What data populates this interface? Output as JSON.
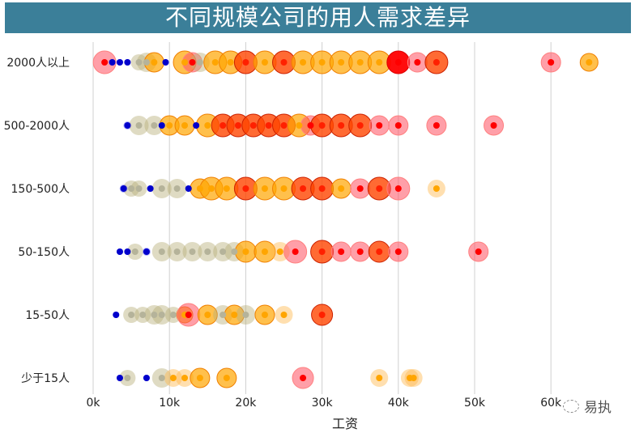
{
  "title": "不同规模公司的用人需求差异",
  "watermark": {
    "icon": "wechat-bubble-icon",
    "text": "易执"
  },
  "colors": {
    "title_bg": "#3b7f99",
    "grid": "#d0d0d0",
    "low": "#0000cc",
    "mid_low": "#c8c09a",
    "mid": "#ffa500",
    "high": "#ff4500",
    "top": "#ff0000"
  },
  "chart_data": {
    "type": "scatter",
    "title": "不同规模公司的用人需求差异",
    "xlabel": "工资",
    "ylabel": "",
    "xlim": [
      0,
      65
    ],
    "x_ticks": [
      "0k",
      "10k",
      "20k",
      "30k",
      "40k",
      "50k",
      "60k"
    ],
    "x_tick_values": [
      0,
      10,
      20,
      30,
      40,
      50,
      60
    ],
    "grid": "vertical",
    "categories": [
      "2000人以上",
      "500-2000人",
      "150-500人",
      "50-150人",
      "15-50人",
      "少于15人"
    ],
    "encoding": "x = salary (k); bubble size & color encode salary level (blue=low, beige, orange, red-orange, red=high)",
    "series": [
      {
        "name": "2000人以上",
        "points": [
          [
            1.5,
            "r",
            14
          ],
          [
            2.5,
            "b",
            4
          ],
          [
            3.5,
            "b",
            4
          ],
          [
            4.5,
            "b",
            4
          ],
          [
            6,
            "g",
            10
          ],
          [
            7,
            "g",
            12
          ],
          [
            8,
            "o",
            12
          ],
          [
            9.5,
            "b",
            4
          ],
          [
            12,
            "o",
            14
          ],
          [
            13,
            "r",
            12
          ],
          [
            14,
            "g",
            12
          ],
          [
            16,
            "o",
            14
          ],
          [
            18,
            "o",
            14
          ],
          [
            20,
            "h",
            14
          ],
          [
            22.5,
            "o",
            14
          ],
          [
            25,
            "h",
            14
          ],
          [
            27.5,
            "o",
            14
          ],
          [
            30,
            "o",
            14
          ],
          [
            32.5,
            "o",
            14
          ],
          [
            35,
            "o",
            14
          ],
          [
            37.5,
            "o",
            14
          ],
          [
            40,
            "t",
            14
          ],
          [
            42.5,
            "r",
            12
          ],
          [
            45,
            "h",
            14
          ],
          [
            60,
            "r",
            12
          ],
          [
            65,
            "o",
            11
          ]
        ]
      },
      {
        "name": "500-2000人",
        "points": [
          [
            4.5,
            "b",
            5
          ],
          [
            6,
            "g",
            12
          ],
          [
            8,
            "g",
            12
          ],
          [
            9,
            "b",
            4
          ],
          [
            10,
            "o",
            12
          ],
          [
            12,
            "o",
            12
          ],
          [
            13.5,
            "b",
            4
          ],
          [
            15,
            "o",
            14
          ],
          [
            17,
            "h",
            14
          ],
          [
            19,
            "h",
            14
          ],
          [
            21,
            "h",
            14
          ],
          [
            23,
            "h",
            14
          ],
          [
            25,
            "h",
            14
          ],
          [
            27,
            "o",
            14
          ],
          [
            28.5,
            "r",
            12
          ],
          [
            30,
            "h",
            14
          ],
          [
            32.5,
            "h",
            14
          ],
          [
            35,
            "h",
            14
          ],
          [
            37.5,
            "r",
            12
          ],
          [
            40,
            "r",
            12
          ],
          [
            45,
            "r",
            12
          ],
          [
            52.5,
            "r",
            12
          ]
        ]
      },
      {
        "name": "150-500人",
        "points": [
          [
            4,
            "b",
            5
          ],
          [
            5,
            "g",
            10
          ],
          [
            6,
            "g",
            10
          ],
          [
            7.5,
            "b",
            4
          ],
          [
            9,
            "g",
            12
          ],
          [
            11,
            "g",
            12
          ],
          [
            12.5,
            "b",
            4
          ],
          [
            14,
            "o",
            12
          ],
          [
            15.5,
            "o",
            14
          ],
          [
            17.5,
            "o",
            14
          ],
          [
            20,
            "h",
            14
          ],
          [
            22.5,
            "o",
            14
          ],
          [
            25,
            "o",
            14
          ],
          [
            27.5,
            "h",
            14
          ],
          [
            30,
            "h",
            14
          ],
          [
            32.5,
            "o",
            12
          ],
          [
            35,
            "r",
            12
          ],
          [
            37.5,
            "h",
            14
          ],
          [
            40,
            "r",
            14
          ],
          [
            45,
            "y",
            11
          ]
        ]
      },
      {
        "name": "50-150人",
        "points": [
          [
            3.5,
            "b",
            4
          ],
          [
            4.5,
            "b",
            4
          ],
          [
            5.5,
            "g",
            10
          ],
          [
            7,
            "b",
            5
          ],
          [
            9,
            "g",
            12
          ],
          [
            11,
            "g",
            12
          ],
          [
            13,
            "g",
            12
          ],
          [
            15,
            "g",
            12
          ],
          [
            17,
            "g",
            12
          ],
          [
            18.5,
            "g",
            12
          ],
          [
            20,
            "o",
            13
          ],
          [
            22.5,
            "o",
            13
          ],
          [
            24.5,
            "y",
            12
          ],
          [
            26.5,
            "r",
            14
          ],
          [
            30,
            "h",
            14
          ],
          [
            32.5,
            "r",
            12
          ],
          [
            35,
            "r",
            12
          ],
          [
            37.5,
            "h",
            13
          ],
          [
            40,
            "r",
            12
          ],
          [
            50.5,
            "r",
            12
          ]
        ]
      },
      {
        "name": "15-50人",
        "points": [
          [
            3,
            "b",
            4
          ],
          [
            5,
            "g",
            10
          ],
          [
            6.5,
            "g",
            10
          ],
          [
            8,
            "g",
            12
          ],
          [
            9,
            "g",
            12
          ],
          [
            10.5,
            "g",
            10
          ],
          [
            12,
            "o",
            10
          ],
          [
            12.5,
            "r",
            14
          ],
          [
            15,
            "o",
            12
          ],
          [
            17,
            "g",
            12
          ],
          [
            18.5,
            "o",
            12
          ],
          [
            20,
            "g",
            12
          ],
          [
            22.5,
            "o",
            12
          ],
          [
            25,
            "y",
            11
          ],
          [
            30,
            "h",
            13
          ]
        ]
      },
      {
        "name": "少于15人",
        "points": [
          [
            3.5,
            "b",
            4
          ],
          [
            4.5,
            "g",
            10
          ],
          [
            7,
            "b",
            4
          ],
          [
            9,
            "g",
            12
          ],
          [
            10.5,
            "y",
            11
          ],
          [
            12,
            "y",
            11
          ],
          [
            14,
            "o",
            12
          ],
          [
            17.5,
            "o",
            12
          ],
          [
            27.5,
            "r",
            13
          ],
          [
            37.5,
            "y",
            11
          ],
          [
            41.5,
            "y",
            11
          ],
          [
            42,
            "y",
            11
          ]
        ]
      }
    ]
  }
}
